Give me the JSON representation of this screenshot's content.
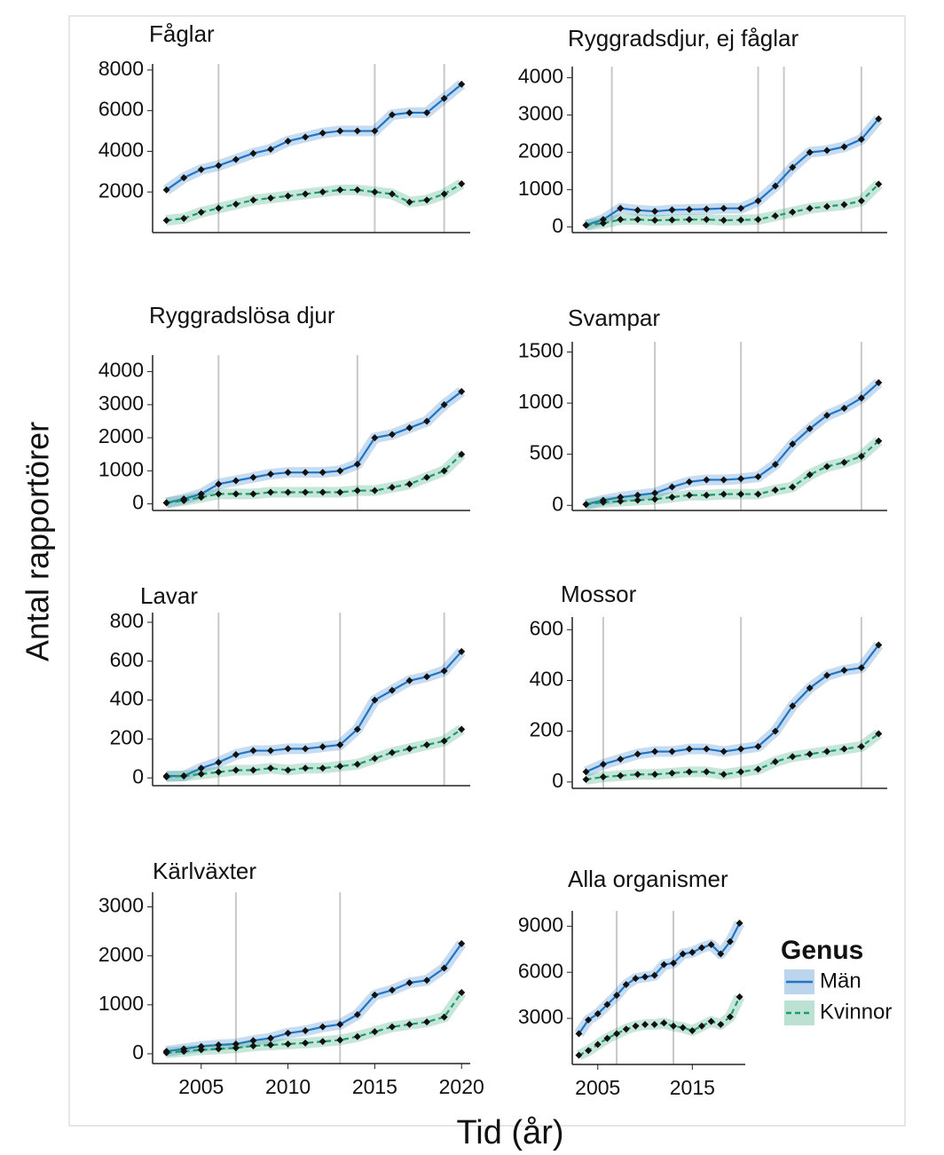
{
  "xlabel": "Tid (år)",
  "ylabel": "Antal rapportörer",
  "legend": {
    "title": "Genus"
  },
  "chart_data": [
    {
      "type": "line",
      "title": "Fåglar",
      "x": [
        2003,
        2004,
        2005,
        2006,
        2007,
        2008,
        2009,
        2010,
        2011,
        2012,
        2013,
        2014,
        2015,
        2016,
        2017,
        2018,
        2019,
        2020
      ],
      "xlim": [
        2002.2,
        2020.5
      ],
      "ylim": [
        0,
        8300
      ],
      "yticks": [
        2000,
        4000,
        6000,
        8000
      ],
      "vlines": [
        2006,
        2015,
        2019
      ],
      "series": [
        {
          "name": "Män",
          "color": "#1f74c4",
          "values": [
            2100,
            2700,
            3100,
            3300,
            3600,
            3900,
            4100,
            4500,
            4700,
            4900,
            5000,
            5000,
            5000,
            5800,
            5900,
            5900,
            6600,
            7300
          ]
        },
        {
          "name": "Kvinnor",
          "color": "#1f9a6c",
          "values": [
            600,
            700,
            1000,
            1200,
            1400,
            1600,
            1700,
            1800,
            1900,
            2000,
            2100,
            2100,
            2000,
            1900,
            1500,
            1600,
            1900,
            2400
          ]
        }
      ]
    },
    {
      "type": "line",
      "title": "Ryggradsdjur, ej fåglar",
      "x": [
        2003,
        2004,
        2005,
        2006,
        2007,
        2008,
        2009,
        2010,
        2011,
        2012,
        2013,
        2014,
        2015,
        2016,
        2017,
        2018,
        2019,
        2020
      ],
      "xlim": [
        2002.2,
        2020.5
      ],
      "ylim": [
        -150,
        4300
      ],
      "yticks": [
        0,
        1000,
        2000,
        3000,
        4000
      ],
      "vlines": [
        2004.5,
        2013,
        2014.5,
        2019
      ],
      "series": [
        {
          "name": "Män",
          "color": "#1f74c4",
          "values": [
            50,
            200,
            500,
            450,
            420,
            460,
            470,
            480,
            500,
            500,
            700,
            1100,
            1600,
            2000,
            2050,
            2150,
            2350,
            2900
          ]
        },
        {
          "name": "Kvinnor",
          "color": "#1f9a6c",
          "values": [
            50,
            100,
            200,
            200,
            180,
            190,
            200,
            200,
            180,
            190,
            200,
            300,
            400,
            500,
            550,
            600,
            700,
            1150
          ]
        }
      ]
    },
    {
      "type": "line",
      "title": "Ryggradslösa djur",
      "x": [
        2003,
        2004,
        2005,
        2006,
        2007,
        2008,
        2009,
        2010,
        2011,
        2012,
        2013,
        2014,
        2015,
        2016,
        2017,
        2018,
        2019,
        2020
      ],
      "xlim": [
        2002.2,
        2020.5
      ],
      "ylim": [
        -200,
        4500
      ],
      "yticks": [
        0,
        1000,
        2000,
        3000,
        4000
      ],
      "vlines": [
        2006,
        2014
      ],
      "series": [
        {
          "name": "Män",
          "color": "#1f74c4",
          "values": [
            30,
            150,
            300,
            600,
            700,
            800,
            900,
            950,
            950,
            950,
            1000,
            1200,
            2000,
            2100,
            2300,
            2500,
            3000,
            3400
          ]
        },
        {
          "name": "Kvinnor",
          "color": "#1f9a6c",
          "values": [
            30,
            100,
            200,
            300,
            300,
            300,
            350,
            350,
            350,
            350,
            350,
            400,
            400,
            500,
            600,
            800,
            1000,
            1500
          ]
        }
      ]
    },
    {
      "type": "line",
      "title": "Svampar",
      "x": [
        2003,
        2004,
        2005,
        2006,
        2007,
        2008,
        2009,
        2010,
        2011,
        2012,
        2013,
        2014,
        2015,
        2016,
        2017,
        2018,
        2019,
        2020
      ],
      "xlim": [
        2002.2,
        2020.5
      ],
      "ylim": [
        -50,
        1600
      ],
      "yticks": [
        0,
        500,
        1000,
        1500
      ],
      "vlines": [
        2007,
        2012,
        2019
      ],
      "series": [
        {
          "name": "Män",
          "color": "#1f74c4",
          "values": [
            10,
            50,
            80,
            100,
            120,
            180,
            230,
            250,
            250,
            260,
            280,
            400,
            600,
            750,
            880,
            950,
            1050,
            1200
          ]
        },
        {
          "name": "Kvinnor",
          "color": "#1f9a6c",
          "values": [
            10,
            30,
            40,
            50,
            60,
            80,
            100,
            100,
            110,
            110,
            110,
            150,
            180,
            300,
            380,
            420,
            480,
            630
          ]
        }
      ]
    },
    {
      "type": "line",
      "title": "Lavar",
      "x": [
        2003,
        2004,
        2005,
        2006,
        2007,
        2008,
        2009,
        2010,
        2011,
        2012,
        2013,
        2014,
        2015,
        2016,
        2017,
        2018,
        2019,
        2020
      ],
      "xlim": [
        2002.2,
        2020.5
      ],
      "ylim": [
        -40,
        850
      ],
      "yticks": [
        0,
        200,
        400,
        600,
        800
      ],
      "vlines": [
        2006,
        2013,
        2019
      ],
      "series": [
        {
          "name": "Män",
          "color": "#1f74c4",
          "values": [
            10,
            10,
            50,
            80,
            120,
            140,
            140,
            150,
            150,
            160,
            170,
            250,
            400,
            450,
            500,
            520,
            550,
            650
          ]
        },
        {
          "name": "Kvinnor",
          "color": "#1f9a6c",
          "values": [
            5,
            10,
            20,
            30,
            40,
            40,
            50,
            40,
            50,
            50,
            60,
            70,
            100,
            130,
            150,
            170,
            190,
            250
          ]
        }
      ]
    },
    {
      "type": "line",
      "title": "Mossor",
      "x": [
        2003,
        2004,
        2005,
        2006,
        2007,
        2008,
        2009,
        2010,
        2011,
        2012,
        2013,
        2014,
        2015,
        2016,
        2017,
        2018,
        2019,
        2020
      ],
      "xlim": [
        2002.2,
        2020.5
      ],
      "ylim": [
        -25,
        650
      ],
      "yticks": [
        0,
        200,
        400,
        600
      ],
      "vlines": [
        2004,
        2012,
        2019
      ],
      "series": [
        {
          "name": "Män",
          "color": "#1f74c4",
          "values": [
            40,
            70,
            90,
            110,
            120,
            120,
            130,
            130,
            120,
            130,
            140,
            200,
            300,
            370,
            420,
            440,
            450,
            540
          ]
        },
        {
          "name": "Kvinnor",
          "color": "#1f9a6c",
          "values": [
            10,
            20,
            25,
            30,
            30,
            35,
            40,
            40,
            30,
            40,
            50,
            80,
            100,
            110,
            120,
            130,
            140,
            190
          ]
        }
      ]
    },
    {
      "type": "line",
      "title": "Kärlväxter",
      "x": [
        2003,
        2004,
        2005,
        2006,
        2007,
        2008,
        2009,
        2010,
        2011,
        2012,
        2013,
        2014,
        2015,
        2016,
        2017,
        2018,
        2019,
        2020
      ],
      "xlim": [
        2002.2,
        2020.5
      ],
      "ylim": [
        -200,
        3300
      ],
      "yticks": [
        0,
        1000,
        2000,
        3000
      ],
      "xticks": [
        2005,
        2010,
        2015,
        2020
      ],
      "vlines": [
        2007,
        2013
      ],
      "series": [
        {
          "name": "Män",
          "color": "#1f74c4",
          "values": [
            50,
            100,
            150,
            180,
            200,
            270,
            320,
            420,
            470,
            550,
            600,
            800,
            1200,
            1300,
            1450,
            1500,
            1750,
            2250
          ]
        },
        {
          "name": "Kvinnor",
          "color": "#1f9a6c",
          "values": [
            20,
            50,
            80,
            100,
            120,
            160,
            180,
            200,
            220,
            250,
            280,
            350,
            450,
            550,
            600,
            650,
            750,
            1250
          ]
        }
      ]
    },
    {
      "type": "line",
      "title": "Alla organismer",
      "x": [
        2003,
        2004,
        2005,
        2006,
        2007,
        2008,
        2009,
        2010,
        2011,
        2012,
        2013,
        2014,
        2015,
        2016,
        2017,
        2018,
        2019,
        2020
      ],
      "xlim": [
        2002.3,
        2020.6
      ],
      "ylim": [
        0,
        10000
      ],
      "yticks": [
        3000,
        6000,
        9000
      ],
      "xticks": [
        2005,
        2015
      ],
      "vlines": [
        2007,
        2013
      ],
      "series": [
        {
          "name": "Män",
          "color": "#1f74c4",
          "values": [
            2000,
            2900,
            3300,
            3900,
            4500,
            5200,
            5600,
            5700,
            5800,
            6500,
            6600,
            7200,
            7300,
            7600,
            7800,
            7200,
            8000,
            9200
          ]
        },
        {
          "name": "Kvinnor",
          "color": "#1f9a6c",
          "values": [
            600,
            900,
            1300,
            1700,
            2000,
            2300,
            2500,
            2600,
            2600,
            2700,
            2500,
            2400,
            2200,
            2500,
            2800,
            2600,
            3100,
            4400
          ]
        }
      ]
    }
  ]
}
